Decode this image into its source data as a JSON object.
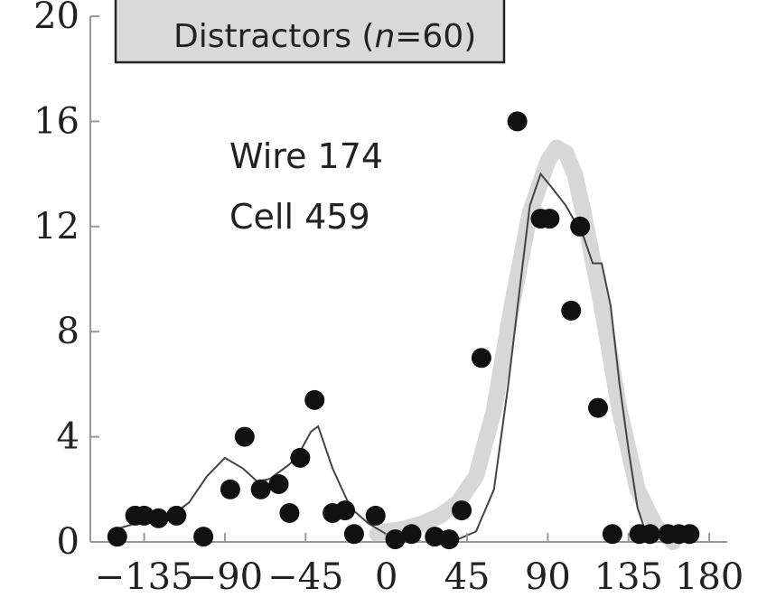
{
  "chart_data": {
    "type": "scatter",
    "title": "",
    "xlabel": "",
    "ylabel": "",
    "xlim": [
      -165,
      190
    ],
    "ylim": [
      0,
      20
    ],
    "x_ticks": [
      -135,
      -90,
      -45,
      0,
      45,
      90,
      135,
      180
    ],
    "x_tick_labels": [
      "−135",
      "−90",
      "−45",
      "0",
      "45",
      "90",
      "135",
      "180"
    ],
    "y_ticks": [
      0,
      4,
      8,
      12,
      16,
      20
    ],
    "y_tick_labels": [
      "0",
      "4",
      "8",
      "12",
      "16",
      "20"
    ],
    "legend": {
      "placement": "top-left",
      "text_prefix": "Distractors (",
      "text_italic": "n",
      "text_suffix": "=60)"
    },
    "annotations": [
      "Wire 174",
      "Cell 459"
    ],
    "series": [
      {
        "kind": "points",
        "color": "#111111",
        "x": [
          -150,
          -140,
          -135,
          -127,
          -117,
          -102,
          -87,
          -79,
          -70,
          -60,
          -54,
          -48,
          -40,
          -30,
          -23,
          -18,
          -6,
          5,
          14,
          27,
          35,
          42,
          53,
          73,
          86,
          91,
          103,
          108,
          118,
          126,
          141,
          147,
          157,
          163,
          169
        ],
        "y": [
          0.2,
          1.0,
          1.0,
          0.9,
          1.0,
          0.2,
          2.0,
          4.0,
          2.0,
          2.2,
          1.1,
          3.2,
          5.4,
          1.1,
          1.2,
          0.3,
          1.0,
          0.1,
          0.3,
          0.2,
          0.1,
          1.2,
          7.0,
          16.0,
          12.3,
          12.3,
          8.8,
          12.0,
          5.1,
          0.3,
          0.3,
          0.3,
          0.3,
          0.3,
          0.3
        ]
      },
      {
        "kind": "line",
        "color": "#444444",
        "x": [
          -150,
          -135,
          -120,
          -110,
          -100,
          -90,
          -80,
          -72,
          -65,
          -55,
          -50,
          -42,
          -38,
          -30,
          -20,
          -10,
          0,
          10,
          20,
          30,
          40,
          50,
          60,
          68,
          75,
          80,
          86,
          92,
          100,
          110,
          115,
          120,
          125,
          130,
          135,
          140,
          145,
          150,
          155,
          160
        ],
        "y": [
          0.5,
          0.8,
          1.0,
          1.5,
          2.5,
          3.2,
          2.8,
          2.3,
          2.4,
          2.9,
          3.2,
          4.2,
          4.4,
          2.8,
          1.3,
          0.7,
          0.3,
          0.1,
          0.0,
          0.0,
          0.1,
          0.4,
          2.0,
          6.0,
          10.0,
          12.8,
          14.0,
          13.5,
          12.8,
          11.6,
          10.6,
          10.6,
          9.0,
          6.0,
          3.5,
          1.3,
          0.3,
          0.0,
          0.0,
          0.0
        ]
      },
      {
        "kind": "band",
        "color": "#d0d0d0",
        "x": [
          -5,
          0,
          10,
          20,
          30,
          40,
          50,
          60,
          70,
          80,
          90,
          95,
          100,
          105,
          110,
          120,
          130,
          140,
          150,
          160
        ],
        "y": [
          0.3,
          0.4,
          0.5,
          0.7,
          1.0,
          1.5,
          2.5,
          5.0,
          9.0,
          12.5,
          14.5,
          15.0,
          14.8,
          14.0,
          12.5,
          9.0,
          5.0,
          2.0,
          0.6,
          0.0
        ]
      }
    ]
  }
}
